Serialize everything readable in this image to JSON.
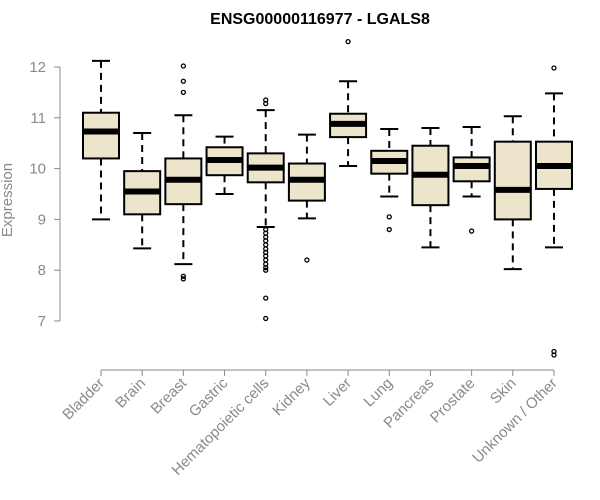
{
  "chart_data": {
    "type": "boxplot",
    "title": "ENSG00000116977 - LGALS8",
    "ylabel": "Expression",
    "xlabel": "",
    "ylim": [
      6.2,
      12.6
    ],
    "yticks": [
      7,
      8,
      9,
      10,
      11,
      12
    ],
    "box_fill": "#ece5cc",
    "categories": [
      "Bladder",
      "Brain",
      "Breast",
      "Gastric",
      "Hematopoietic cells",
      "Kidney",
      "Liver",
      "Lung",
      "Pancreas",
      "Prostate",
      "Skin",
      "Unknown / Other"
    ],
    "boxes": [
      {
        "name": "Bladder",
        "min": 9.0,
        "q1": 10.2,
        "median": 10.73,
        "q3": 11.1,
        "max": 12.12,
        "outliers": []
      },
      {
        "name": "Brain",
        "min": 8.43,
        "q1": 9.1,
        "median": 9.55,
        "q3": 9.95,
        "max": 10.7,
        "outliers": []
      },
      {
        "name": "Breast",
        "min": 8.12,
        "q1": 9.3,
        "median": 9.78,
        "q3": 10.2,
        "max": 11.05,
        "outliers": [
          12.02,
          11.72,
          11.5,
          7.88,
          7.83
        ]
      },
      {
        "name": "Gastric",
        "min": 9.5,
        "q1": 9.87,
        "median": 10.17,
        "q3": 10.42,
        "max": 10.63,
        "outliers": []
      },
      {
        "name": "Hematopoietic cells",
        "min": 8.85,
        "q1": 9.73,
        "median": 10.02,
        "q3": 10.3,
        "max": 11.15,
        "outliers": [
          11.35,
          11.28,
          8.8,
          8.73,
          8.65,
          8.58,
          8.5,
          8.42,
          8.35,
          8.28,
          8.2,
          8.12,
          8.05,
          8.0,
          7.45,
          7.05
        ]
      },
      {
        "name": "Kidney",
        "min": 9.02,
        "q1": 9.37,
        "median": 9.78,
        "q3": 10.1,
        "max": 10.67,
        "outliers": [
          8.2
        ]
      },
      {
        "name": "Liver",
        "min": 10.05,
        "q1": 10.62,
        "median": 10.88,
        "q3": 11.08,
        "max": 11.72,
        "outliers": [
          12.5
        ]
      },
      {
        "name": "Lung",
        "min": 9.45,
        "q1": 9.9,
        "median": 10.15,
        "q3": 10.35,
        "max": 10.78,
        "outliers": [
          9.05,
          8.8
        ]
      },
      {
        "name": "Pancreas",
        "min": 8.45,
        "q1": 9.28,
        "median": 9.88,
        "q3": 10.45,
        "max": 10.8,
        "outliers": []
      },
      {
        "name": "Prostate",
        "min": 9.45,
        "q1": 9.75,
        "median": 10.05,
        "q3": 10.22,
        "max": 10.82,
        "outliers": [
          8.77
        ]
      },
      {
        "name": "Skin",
        "min": 8.02,
        "q1": 9.0,
        "median": 9.58,
        "q3": 10.53,
        "max": 11.03,
        "outliers": []
      },
      {
        "name": "Unknown / Other",
        "min": 8.45,
        "q1": 9.6,
        "median": 10.05,
        "q3": 10.53,
        "max": 11.48,
        "outliers": [
          11.98,
          6.4,
          6.33
        ]
      }
    ]
  }
}
